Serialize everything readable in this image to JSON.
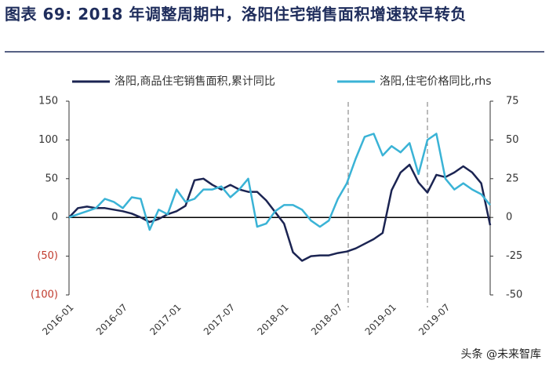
{
  "chart_data": {
    "type": "line",
    "title": "图表 69: 2018 年调整周期中，洛阳住宅销售面积增速较早转负",
    "categories": [
      "2016-01",
      null,
      null,
      null,
      null,
      null,
      "2016-07",
      null,
      null,
      null,
      null,
      null,
      "2017-01",
      null,
      null,
      null,
      null,
      null,
      "2017-07",
      null,
      null,
      null,
      null,
      null,
      "2018-01",
      null,
      null,
      null,
      null,
      null,
      "2018-07",
      null,
      null,
      null,
      null,
      null,
      "2019-01",
      null,
      null,
      null,
      null,
      null,
      "2019-07",
      null,
      null,
      null,
      null,
      null
    ],
    "series": [
      {
        "name": "洛阳,商品住宅销售面积,累计同比",
        "color": "#1b2452",
        "values": [
          0,
          12,
          14,
          12,
          12,
          10,
          8,
          5,
          0,
          -6,
          -2,
          4,
          8,
          15,
          48,
          50,
          42,
          36,
          42,
          36,
          33,
          33,
          22,
          7,
          -8,
          -45,
          -56,
          -50,
          -49,
          -49,
          -46,
          -44,
          -40,
          -34,
          -28,
          -20,
          35,
          58,
          68,
          45,
          32,
          55,
          52,
          58,
          66,
          58,
          44,
          -10
        ]
      },
      {
        "name": "洛阳,住宅价格同比,rhs",
        "color": "#3ab3d6",
        "axis": "y2",
        "values": [
          0,
          2,
          4,
          6,
          12,
          10,
          6,
          13,
          12,
          -8,
          5,
          2,
          18,
          10,
          12,
          18,
          18,
          20,
          13,
          18,
          25,
          -6,
          -4,
          4,
          8,
          8,
          5,
          -2,
          -6,
          -2,
          12,
          22,
          38,
          52,
          54,
          40,
          46,
          42,
          48,
          28,
          50,
          54,
          25,
          18,
          22,
          18,
          15,
          8
        ]
      }
    ],
    "ylim": [
      -100,
      150
    ],
    "yticks": [
      150,
      100,
      50,
      0,
      {
        "value": -50,
        "label": "(50)"
      },
      {
        "value": -100,
        "label": "(100)"
      }
    ],
    "y2lim": [
      -50,
      75
    ],
    "y2ticks": [
      75,
      50,
      25,
      0,
      -25,
      -50
    ],
    "watermark": "头条 @未来智库"
  }
}
